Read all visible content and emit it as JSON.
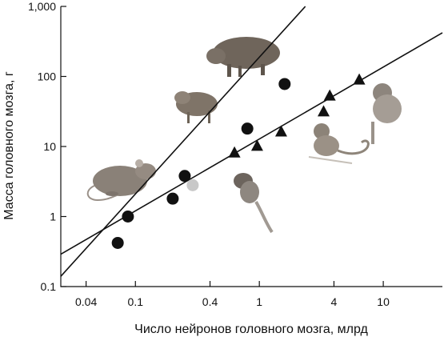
{
  "chart_data": {
    "type": "scatter",
    "title": "",
    "xlabel": "Число нейронов головного мозга, млрд",
    "ylabel": "Масса головного мозга, г",
    "x_scale": "log",
    "y_scale": "log",
    "xlim": [
      0.025,
      30
    ],
    "ylim": [
      0.1,
      1000
    ],
    "x_ticks": [
      0.04,
      0.1,
      0.4,
      1,
      4,
      10
    ],
    "x_tick_labels": [
      "0.04",
      "0.1",
      "0.4",
      "1",
      "4",
      "10"
    ],
    "y_ticks": [
      0.1,
      1,
      10,
      100,
      1000
    ],
    "y_tick_labels": [
      "0.1",
      "1",
      "10",
      "100",
      "1,000"
    ],
    "grid": false,
    "series": [
      {
        "marker": "circle",
        "color": "#111111",
        "points": [
          {
            "x": 0.072,
            "y": 0.42
          },
          {
            "x": 0.087,
            "y": 1.0
          },
          {
            "x": 0.2,
            "y": 1.8
          },
          {
            "x": 0.25,
            "y": 3.8
          },
          {
            "x": 0.8,
            "y": 18
          },
          {
            "x": 1.6,
            "y": 78
          }
        ],
        "fit": {
          "x": [
            0.025,
            2.35
          ],
          "y": [
            0.14,
            1000
          ]
        }
      },
      {
        "marker": "circle",
        "color": "#c8c8c8",
        "points": [
          {
            "x": 0.29,
            "y": 2.8
          }
        ]
      },
      {
        "marker": "triangle",
        "color": "#111111",
        "points": [
          {
            "x": 0.63,
            "y": 8.0
          },
          {
            "x": 0.96,
            "y": 10
          },
          {
            "x": 1.5,
            "y": 16
          },
          {
            "x": 3.3,
            "y": 31
          },
          {
            "x": 3.7,
            "y": 52
          },
          {
            "x": 6.4,
            "y": 88
          }
        ],
        "fit": {
          "x": [
            0.025,
            30
          ],
          "y": [
            0.29,
            420
          ]
        }
      }
    ]
  },
  "illustrations": [
    "mouse-icon",
    "agouti-icon",
    "capybara-icon",
    "marmoset-icon",
    "squirrel-monkey-icon",
    "macaque-icon"
  ]
}
